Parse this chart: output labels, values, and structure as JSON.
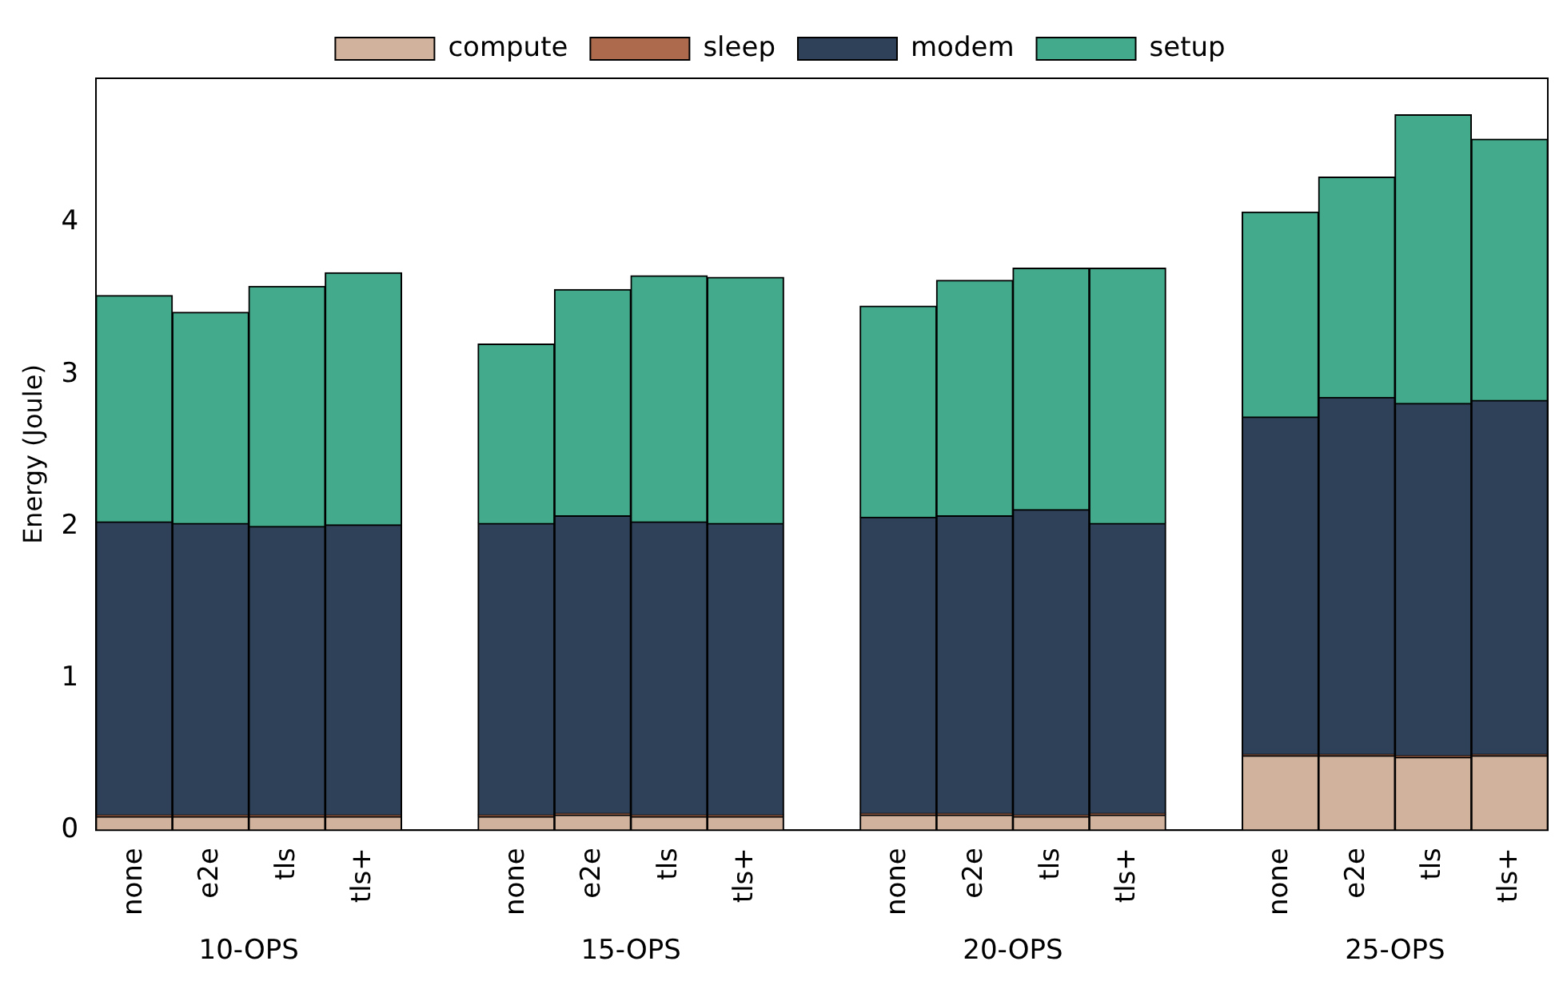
{
  "chart_data": {
    "type": "bar",
    "ylabel": "Energy (Joule)",
    "categories": [
      "none",
      "e2e",
      "tls",
      "tls+",
      null,
      "none",
      "e2e",
      "tls",
      "tls+",
      null,
      "none",
      "e2e",
      "tls",
      "tls+",
      null,
      "none",
      "e2e",
      "tls",
      "tls+"
    ],
    "stacked": true,
    "series": [
      {
        "name": "compute",
        "color": "#d1b29c",
        "values": [
          0.09,
          0.09,
          0.09,
          0.09,
          null,
          0.09,
          0.1,
          0.09,
          0.09,
          null,
          0.1,
          0.1,
          0.09,
          0.1,
          null,
          0.49,
          0.49,
          0.48,
          0.49
        ]
      },
      {
        "name": "sleep",
        "color": "#ad6a4d",
        "values": [
          0.01,
          0.01,
          0.01,
          0.01,
          null,
          0.01,
          0.01,
          0.01,
          0.01,
          null,
          0.01,
          0.01,
          0.01,
          0.01,
          null,
          0.01,
          0.01,
          0.01,
          0.01
        ]
      },
      {
        "name": "modem",
        "color": "#2e4159",
        "values": [
          1.93,
          1.92,
          1.9,
          1.91,
          null,
          1.92,
          1.96,
          1.93,
          1.92,
          null,
          1.95,
          1.96,
          2.01,
          1.91,
          null,
          2.22,
          2.35,
          2.32,
          2.33
        ]
      },
      {
        "name": "setup",
        "color": "#43aa8b",
        "values": [
          1.49,
          1.39,
          1.58,
          1.66,
          null,
          1.18,
          1.49,
          1.62,
          1.62,
          null,
          1.39,
          1.55,
          1.59,
          1.68,
          null,
          1.35,
          1.45,
          1.9,
          1.72
        ]
      }
    ],
    "annotations": [
      "10-OPS",
      "15-OPS",
      "20-OPS",
      "25-OPS"
    ],
    "ylim": [
      0,
      4.95
    ],
    "yticks": [
      0,
      1,
      2,
      3,
      4
    ],
    "grid": false,
    "legend": "top"
  }
}
